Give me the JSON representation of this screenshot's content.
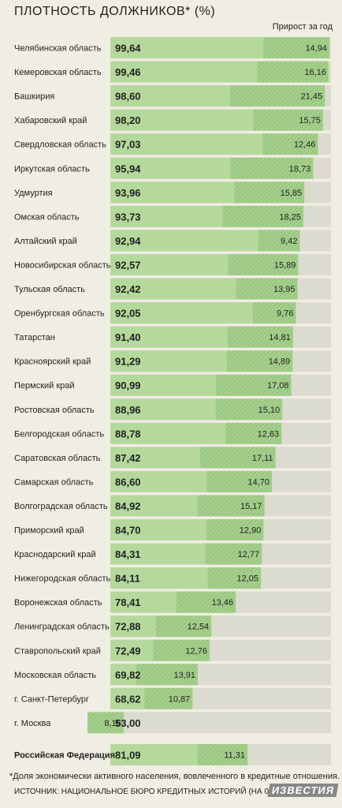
{
  "title": "ПЛОТНОСТЬ ДОЛЖНИКОВ* (%)",
  "growth_header": "Прирост за год",
  "footnote": "*Доля экономически активного населения, вовлеченного в кредитные отношения.",
  "source": "ИСТОЧНИК: НАЦИОНАЛЬНОЕ БЮРО КРЕДИТНЫХ ИСТОРИЙ (НА 01.06.2013 Г.)",
  "logo": "ИЗВЕСТИЯ",
  "colors": {
    "background": "#f0ede3",
    "track": "#dcdbcf",
    "bar": "#b5d99c",
    "growth_hatch": "#8fc07a",
    "growth_fill": "#a6cf8c"
  },
  "chart_data": {
    "type": "bar",
    "orientation": "horizontal",
    "xlim": [
      0,
      100
    ],
    "categories": [
      "Челябинская область",
      "Кемеровская область",
      "Башкирия",
      "Хабаровский край",
      "Свердловская область",
      "Иркутская область",
      "Удмуртия",
      "Омская область",
      "Алтайский край",
      "Новосибирская область",
      "Тульская область",
      "Оренбургская область",
      "Татарстан",
      "Красноярский край",
      "Пермский край",
      "Ростовская область",
      "Белгородская область",
      "Саратовская область",
      "Самарская область",
      "Волгоградская область",
      "Приморский край",
      "Краснодарский край",
      "Нижегородская область",
      "Воронежская область",
      "Ленинградская область",
      "Ставропольский край",
      "Московская область",
      "г. Санкт-Петербург",
      "г. Москва"
    ],
    "series": [
      {
        "values": [
          99.64,
          99.46,
          98.6,
          98.2,
          97.03,
          95.94,
          93.96,
          93.73,
          92.94,
          92.57,
          92.42,
          92.05,
          91.4,
          91.29,
          90.99,
          88.96,
          88.78,
          87.42,
          86.6,
          84.92,
          84.7,
          84.31,
          84.11,
          78.41,
          72.88,
          72.49,
          69.82,
          68.62,
          53.0
        ],
        "labels": [
          "99,64",
          "99,46",
          "98,60",
          "98,20",
          "97,03",
          "95,94",
          "93,96",
          "93,73",
          "92,94",
          "92,57",
          "92,42",
          "92,05",
          "91,40",
          "91,29",
          "90,99",
          "88,96",
          "88,78",
          "87,42",
          "86,60",
          "84,92",
          "84,70",
          "84,31",
          "84,11",
          "78,41",
          "72,88",
          "72,49",
          "69,82",
          "68,62",
          "53,00"
        ]
      },
      {
        "name": "Прирост за год",
        "values": [
          14.94,
          16.16,
          21.45,
          15.75,
          12.46,
          18.73,
          15.85,
          18.25,
          9.42,
          15.89,
          13.95,
          9.76,
          14.81,
          14.89,
          17.08,
          15.1,
          12.63,
          17.11,
          14.7,
          15.17,
          12.9,
          12.77,
          12.05,
          13.46,
          12.54,
          12.76,
          13.91,
          10.87,
          8.16
        ],
        "labels": [
          "14,94",
          "16,16",
          "21,45",
          "15,75",
          "12,46",
          "18,73",
          "15,85",
          "18,25",
          "9,42",
          "15,89",
          "13,95",
          "9,76",
          "14,81",
          "14,89",
          "17,08",
          "15,10",
          "12,63",
          "17,11",
          "14,70",
          "15,17",
          "12,90",
          "12,77",
          "12,05",
          "13,46",
          "12,54",
          "12,76",
          "13,91",
          "10,87",
          "8,16"
        ]
      }
    ],
    "total": {
      "category": "Российская Федерация",
      "value": 81.09,
      "label": "81,09",
      "growth": 11.31,
      "growth_label": "11,31"
    }
  }
}
